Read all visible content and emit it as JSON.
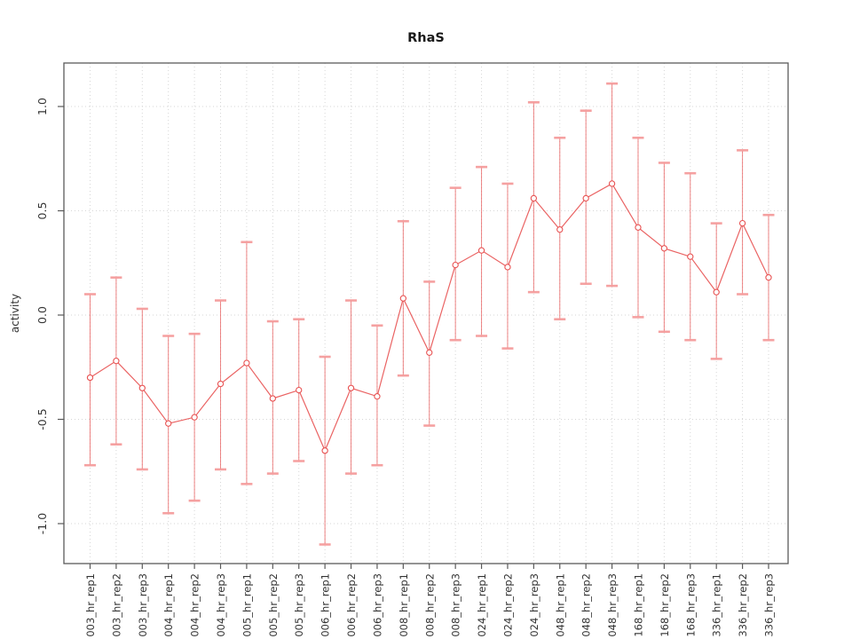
{
  "chart_data": {
    "type": "line",
    "title": "RhaS",
    "xlabel": "",
    "ylabel": "activity",
    "legend": "none",
    "grid": true,
    "marker": "open-circle",
    "error_bars": true,
    "yticks": [
      -1.0,
      -0.5,
      0.0,
      0.5,
      1.0
    ],
    "ylim": [
      -1.2,
      1.2
    ],
    "categories": [
      "003_hr_rep1",
      "003_hr_rep2",
      "003_hr_rep3",
      "004_hr_rep1",
      "004_hr_rep2",
      "004_hr_rep3",
      "005_hr_rep1",
      "005_hr_rep2",
      "005_hr_rep3",
      "006_hr_rep1",
      "006_hr_rep2",
      "006_hr_rep3",
      "008_hr_rep1",
      "008_hr_rep2",
      "008_hr_rep3",
      "024_hr_rep1",
      "024_hr_rep2",
      "024_hr_rep3",
      "048_hr_rep1",
      "048_hr_rep2",
      "048_hr_rep3",
      "168_hr_rep1",
      "168_hr_rep2",
      "168_hr_rep3",
      "336_hr_rep1",
      "336_hr_rep2",
      "336_hr_rep3"
    ],
    "series": [
      {
        "name": "activity",
        "values": [
          -0.3,
          -0.22,
          -0.35,
          -0.52,
          -0.49,
          -0.33,
          -0.23,
          -0.4,
          -0.36,
          -0.65,
          -0.35,
          -0.39,
          0.08,
          -0.18,
          0.24,
          0.31,
          0.23,
          0.56,
          0.41,
          0.56,
          0.63,
          0.42,
          0.32,
          0.28,
          0.11,
          0.44,
          0.18
        ],
        "lower": [
          -0.72,
          -0.62,
          -0.74,
          -0.95,
          -0.89,
          -0.74,
          -0.81,
          -0.76,
          -0.7,
          -1.1,
          -0.76,
          -0.72,
          -0.29,
          -0.53,
          -0.12,
          -0.1,
          -0.16,
          0.11,
          -0.02,
          0.15,
          0.14,
          -0.01,
          -0.08,
          -0.12,
          -0.21,
          0.1,
          -0.12
        ],
        "upper": [
          0.1,
          0.18,
          0.03,
          -0.1,
          -0.09,
          0.07,
          0.35,
          -0.03,
          -0.02,
          -0.2,
          0.07,
          -0.05,
          0.45,
          0.16,
          0.61,
          0.71,
          0.63,
          1.02,
          0.85,
          0.98,
          1.11,
          0.85,
          0.73,
          0.68,
          0.44,
          0.79,
          0.48
        ]
      }
    ],
    "colors": {
      "series": "#e85252",
      "cap": "#f59c9c",
      "grid": "#d6d6d6",
      "frame": "#5a5a5a",
      "tick": "#5a5a5a",
      "text": "#333333",
      "title": "#1a1a1a",
      "background": "#ffffff"
    }
  }
}
